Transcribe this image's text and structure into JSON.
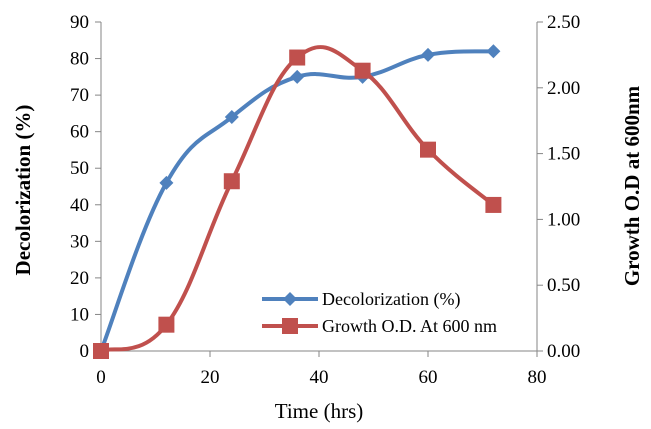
{
  "chart_data": {
    "type": "line",
    "title": "",
    "xlabel": "Time (hrs)",
    "ylabel": "Decolorization (%)",
    "y2label": "Growth O.D  at 600nm",
    "xlim": [
      0,
      80
    ],
    "ylim": [
      0,
      90
    ],
    "y2lim": [
      0,
      2.5
    ],
    "x_ticks": [
      "0",
      "20",
      "40",
      "60",
      "80"
    ],
    "y_ticks": [
      "0",
      "10",
      "20",
      "30",
      "40",
      "50",
      "60",
      "70",
      "80",
      "90"
    ],
    "y2_ticks": [
      "0.00",
      "0.50",
      "1.00",
      "1.50",
      "2.00",
      "2.50"
    ],
    "grid": false,
    "legend_position": "bottom-right",
    "series": [
      {
        "name": "Decolorization (%)",
        "axis": "left",
        "marker": "diamond",
        "color": "#4F81BD",
        "x": [
          0,
          12,
          24,
          36,
          48,
          60,
          72
        ],
        "values": [
          0,
          46,
          64,
          75,
          75,
          81,
          82
        ]
      },
      {
        "name": "Growth O.D. At 600 nm",
        "axis": "right",
        "marker": "square",
        "color": "#C0504D",
        "x": [
          0,
          12,
          24,
          36,
          48,
          60,
          72
        ],
        "values": [
          0,
          0.2,
          1.29,
          2.23,
          2.13,
          1.53,
          1.11
        ]
      }
    ]
  }
}
